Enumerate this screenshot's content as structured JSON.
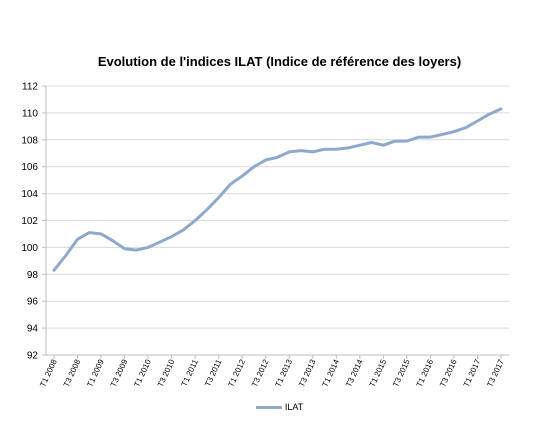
{
  "chart_data": {
    "type": "line",
    "title": "Evolution de l'indices ILAT (Indice de référence des loyers)",
    "xlabel": "",
    "ylabel": "",
    "ylim": [
      92,
      112
    ],
    "yticks": [
      92,
      94,
      96,
      98,
      100,
      102,
      104,
      106,
      108,
      110,
      112
    ],
    "grid": true,
    "legend": "bottom",
    "x": [
      "T1 2008",
      "T2 2008",
      "T3 2008",
      "T4 2008",
      "T1 2009",
      "T2 2009",
      "T3 2009",
      "T4 2009",
      "T1 2010",
      "T2 2010",
      "T3 2010",
      "T4 2010",
      "T1 2011",
      "T2 2011",
      "T3 2011",
      "T4 2011",
      "T1 2012",
      "T2 2012",
      "T3 2012",
      "T4 2012",
      "T1 2013",
      "T2 2013",
      "T3 2013",
      "T4 2013",
      "T1 2014",
      "T2 2014",
      "T3 2014",
      "T4 2014",
      "T1 2015",
      "T2 2015",
      "T3 2015",
      "T4 2015",
      "T1 2016",
      "T2 2016",
      "T3 2016",
      "T4 2016",
      "T1 2017",
      "T2 2017",
      "T3 2017"
    ],
    "tick_labels": [
      "T1 2008",
      "T3 2008",
      "T1 2009",
      "T3 2009",
      "T1 2010",
      "T3 2010",
      "T1 2011",
      "T3 2011",
      "T1 2012",
      "T3 2012",
      "T1 2013",
      "T3 2013",
      "T1 2014",
      "T3 2014",
      "T1 2015",
      "T3 2015",
      "T1 2016",
      "T3 2016",
      "T1 2017",
      "T3 2017"
    ],
    "series": [
      {
        "name": "ILAT",
        "color": "#8EA9CC",
        "values": [
          98.3,
          99.4,
          100.6,
          101.1,
          101.0,
          100.5,
          99.9,
          99.8,
          100.0,
          100.4,
          100.8,
          101.3,
          102.0,
          102.8,
          103.7,
          104.7,
          105.3,
          106.0,
          106.5,
          106.7,
          107.1,
          107.2,
          107.1,
          107.3,
          107.3,
          107.4,
          107.6,
          107.8,
          107.6,
          107.9,
          107.9,
          108.2,
          108.2,
          108.4,
          108.6,
          108.9,
          109.4,
          109.9,
          110.3
        ]
      }
    ]
  }
}
